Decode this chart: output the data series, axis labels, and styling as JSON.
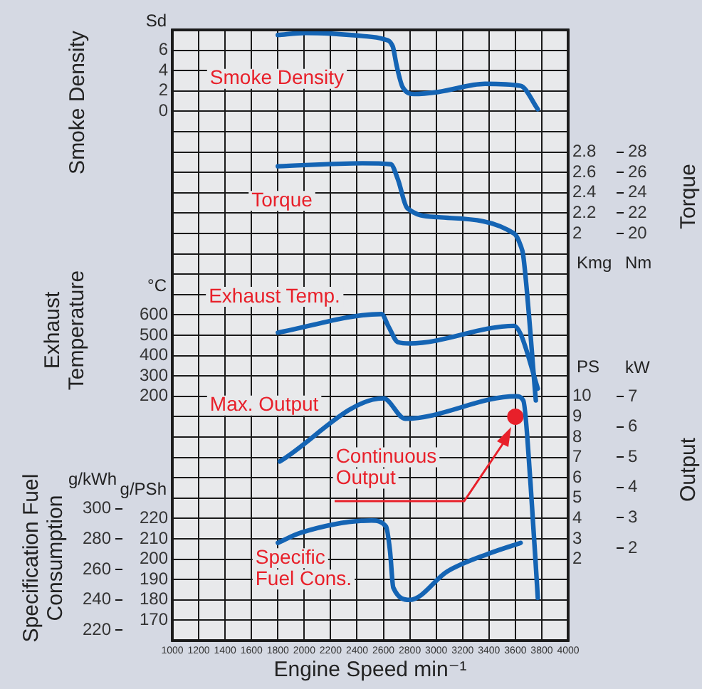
{
  "chart_data": [
    {
      "type": "line",
      "ylabel": "Smoke Density",
      "annotations": [
        "Sd"
      ],
      "grid": true,
      "tick_labels": "y",
      "xlim": [
        1000,
        4000
      ],
      "xticks": [
        1000,
        1200,
        1400,
        1600,
        1800,
        2000,
        2200,
        2400,
        2600,
        2800,
        3000,
        3200,
        3400,
        3600,
        3800,
        4000
      ],
      "ylim": [
        -52,
        8
      ],
      "yticks": [
        {
          "value": -30,
          "label": null
        },
        {
          "value": -28,
          "label": null
        },
        {
          "value": -26,
          "label": null
        },
        {
          "value": -24,
          "label": null
        },
        {
          "value": -22,
          "label": null
        },
        {
          "value": -20,
          "label": null
        },
        {
          "value": -18,
          "label": null
        },
        {
          "value": -16,
          "label": null
        },
        {
          "value": -14,
          "label": null
        },
        {
          "value": -12,
          "label": null
        },
        {
          "value": -10,
          "label": null
        },
        {
          "value": -8,
          "label": null
        },
        {
          "value": -6,
          "label": null
        },
        {
          "value": -4,
          "label": null
        },
        {
          "value": -2,
          "label": null
        },
        0,
        2,
        4,
        6,
        {
          "value": 8,
          "label": null
        }
      ],
      "series": [
        {
          "name": "Smoke Density",
          "color": "#1464b4",
          "marker": "none",
          "x": [
            1800,
            2010,
            2440,
            2600,
            2670,
            2700,
            2745,
            2835,
            3015,
            3370,
            3640,
            3770
          ],
          "values": [
            7.5,
            7.7,
            7.4,
            7.1,
            6.4,
            4.5,
            2.4,
            1.7,
            1.9,
            2.7,
            2.5,
            0.2
          ]
        }
      ]
    },
    {
      "type": "line",
      "y2label": "Torque",
      "annotations": [
        "Kmg",
        "Nm"
      ],
      "tick_labels": "y",
      "xlim": [
        1000,
        4000
      ],
      "xticks": [
        1000,
        1200,
        1400,
        1600,
        1800,
        2000,
        2200,
        2400,
        2600,
        2800,
        3000,
        3200,
        3400,
        3600,
        3800,
        4000
      ],
      "ylim": [
        -2,
        4
      ],
      "yticks": [
        2,
        2.2,
        2.4,
        2.6,
        2.8
      ],
      "y2lim": [
        -20,
        40
      ],
      "y2ticks": [
        20,
        22,
        24,
        26,
        28
      ],
      "series": [
        {
          "name": "Torque",
          "color": "#1464b4",
          "marker": "none",
          "x": [
            1800,
            2440,
            2655,
            2710,
            2780,
            3015,
            3590,
            3640,
            3660,
            3755
          ],
          "values": [
            2.66,
            2.69,
            2.68,
            2.53,
            2.25,
            2.16,
            2.0,
            1.88,
            1.78,
            0.36
          ]
        }
      ]
    },
    {
      "type": "line",
      "ylabel": "Exhaust Temperature",
      "annotations": [
        "°C"
      ],
      "tick_labels": "y",
      "xlim": [
        1000,
        4000
      ],
      "xticks": [
        1000,
        1200,
        1400,
        1600,
        1800,
        2000,
        2200,
        2400,
        2600,
        2800,
        3000,
        3200,
        3400,
        3600,
        3800,
        4000
      ],
      "ylim": [
        -1000,
        2000
      ],
      "yticks": [
        200,
        300,
        400,
        500,
        600
      ],
      "series": [
        {
          "name": "Exhaust Temp.",
          "color": "#1464b4",
          "marker": "none",
          "x": [
            1800,
            2585,
            2640,
            2710,
            2800,
            3590,
            3640,
            3770
          ],
          "values": [
            513,
            604,
            541,
            466,
            460,
            546,
            506,
            238
          ]
        }
      ]
    },
    {
      "type": "line",
      "y2label": "Output",
      "annotations": [
        "PS",
        "kW"
      ],
      "tick_labels": "y",
      "xlim": [
        1000,
        4000
      ],
      "xticks": [
        1000,
        1200,
        1400,
        1600,
        1800,
        2000,
        2200,
        2400,
        2600,
        2800,
        3000,
        3200,
        3400,
        3600,
        3800,
        4000
      ],
      "ylim": [
        -2,
        28
      ],
      "yticks": [
        2,
        3,
        4,
        5,
        6,
        7,
        8,
        9,
        10
      ],
      "y2lim": [
        -1.05,
        19.08
      ],
      "y2ticks": [
        2,
        3,
        4,
        5,
        6,
        7
      ],
      "series": [
        {
          "name": "Max. Output",
          "color": "#1464b4",
          "marker": "none",
          "x": [
            1815,
            2600,
            2765,
            3605,
            3660,
            3715,
            3770
          ],
          "values": [
            6.8,
            9.9,
            8.9,
            10.0,
            9.8,
            5.7,
            0.1
          ]
        },
        {
          "name": "Continuous Output",
          "type": "scatter",
          "color": "#e8202a",
          "marker": "circle",
          "x": [
            3600
          ],
          "values": [
            9
          ]
        }
      ]
    },
    {
      "type": "line",
      "y2label": "Specification Fuel Consumption",
      "xlabel": "Engine Speed min⁻¹",
      "annotations": [
        "g/PSh",
        "g/kWh"
      ],
      "grid": "y",
      "xlim": [
        1000,
        4000
      ],
      "xticks": [
        1000,
        1200,
        1400,
        1600,
        1800,
        2000,
        2200,
        2400,
        2600,
        2800,
        3000,
        3200,
        3400,
        3600,
        3800,
        4000
      ],
      "ylim": [
        160,
        460
      ],
      "yticks": [
        {
          "value": 160,
          "label": null
        },
        170,
        180,
        190,
        200,
        210,
        220,
        {
          "value": 230,
          "label": null
        },
        {
          "value": 240,
          "label": null
        },
        {
          "value": 250,
          "label": null
        },
        {
          "value": 260,
          "label": null
        }
      ],
      "y2lim": [
        213,
        616
      ],
      "y2ticks": [
        220,
        240,
        260,
        280,
        300
      ],
      "series": [
        {
          "name": "Specific Fuel Cons.",
          "color": "#1464b4",
          "marker": "none",
          "x": [
            1800,
            1975,
            2510,
            2620,
            2650,
            2675,
            2800,
            3085,
            3410,
            3640
          ],
          "values": [
            208,
            213,
            219,
            216,
            204,
            186,
            180,
            194,
            203,
            208
          ]
        }
      ]
    }
  ]
}
